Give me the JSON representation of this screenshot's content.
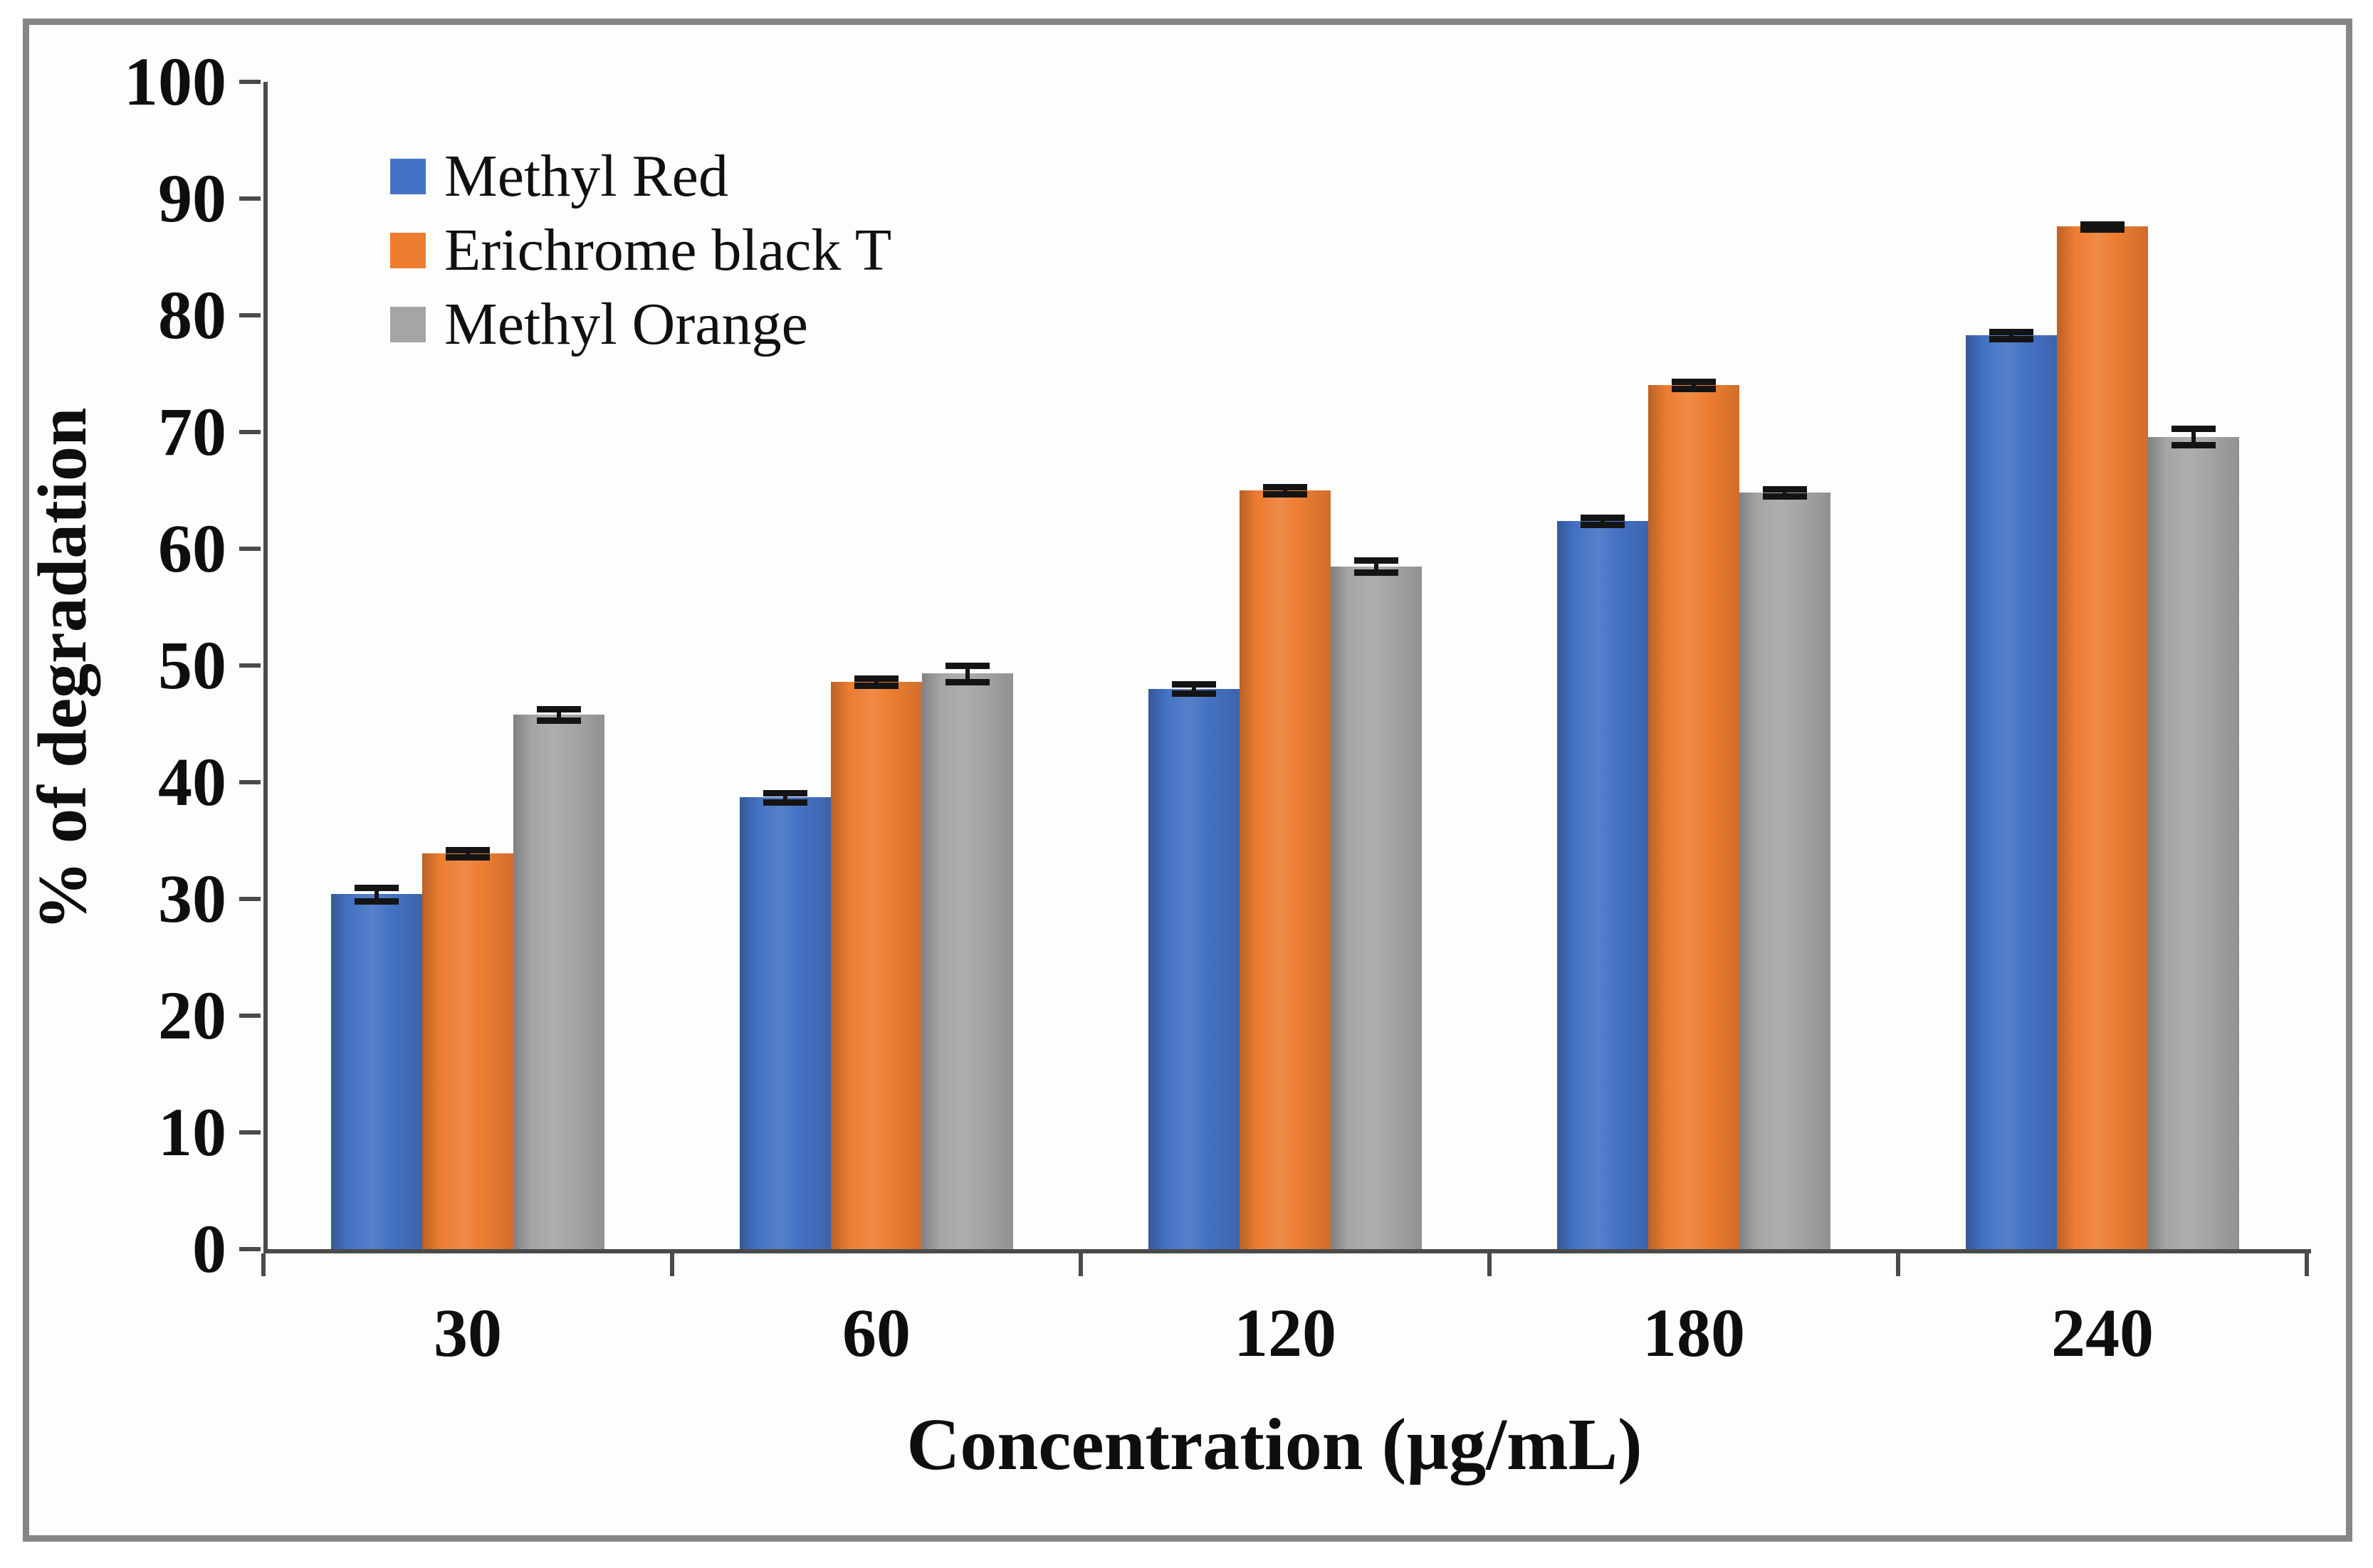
{
  "colors": {
    "methyl_red": "#4472C4",
    "erichrome_black_t": "#ED7D31",
    "methyl_orange": "#A5A5A5",
    "axis": "#4a4a4a",
    "error_bar": "#141414",
    "frame_border": "#868686",
    "background": "#fdfdfb"
  },
  "chart_data": {
    "type": "bar",
    "title": "",
    "xlabel": "Concentration (µg/mL)",
    "ylabel": "% of degradation",
    "categories": [
      "30",
      "60",
      "120",
      "180",
      "240"
    ],
    "series": [
      {
        "name": "Methyl Red",
        "color": "#4472C4",
        "values": [
          30.4,
          38.7,
          48.0,
          62.4,
          78.3
        ],
        "errors": [
          0.6,
          0.4,
          0.4,
          0.3,
          0.3
        ]
      },
      {
        "name": "Erichrome black T",
        "color": "#ED7D31",
        "values": [
          33.9,
          48.6,
          65.0,
          74.0,
          87.6
        ],
        "errors": [
          0.3,
          0.3,
          0.3,
          0.3,
          0.2
        ]
      },
      {
        "name": "Methyl Orange",
        "color": "#A5A5A5",
        "values": [
          45.8,
          49.3,
          58.5,
          64.8,
          69.6
        ],
        "errors": [
          0.5,
          0.7,
          0.5,
          0.3,
          0.7
        ]
      }
    ],
    "ylim": [
      0,
      100
    ],
    "y_ticks": [
      0,
      10,
      20,
      30,
      40,
      50,
      60,
      70,
      80,
      90,
      100
    ],
    "grid": false,
    "legend_position": "upper-left",
    "error_bars": true
  }
}
